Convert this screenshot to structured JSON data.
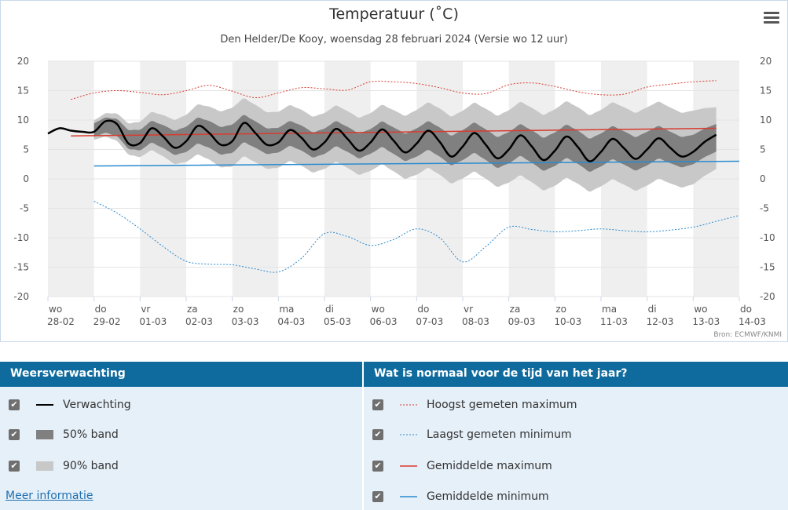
{
  "header": {
    "title": "Temperatuur (˚C)",
    "subtitle": "Den Helder/De Kooy, woensdag 28 februari 2024 (Versie wo 12 uur)",
    "credits": "Bron: ECMWF/KNMI"
  },
  "colors": {
    "forecast": "#000000",
    "band50": "#808080",
    "band90": "#c8c8c8",
    "record_max": "#d83b2f",
    "record_min": "#2a8bd0",
    "normal_max": "#d83b2f",
    "normal_min": "#2a8bd0"
  },
  "chart_data": {
    "type": "line",
    "title": "Temperatuur (˚C)",
    "ylim": [
      -20,
      20
    ],
    "yticks": [
      20,
      15,
      10,
      5,
      0,
      -5,
      -10,
      -15,
      -20
    ],
    "x_range_days": [
      0,
      15
    ],
    "x_labels": [
      {
        "day": "wo",
        "date": "28-02"
      },
      {
        "day": "do",
        "date": "29-02"
      },
      {
        "day": "vr",
        "date": "01-03"
      },
      {
        "day": "za",
        "date": "02-03"
      },
      {
        "day": "zo",
        "date": "03-03"
      },
      {
        "day": "ma",
        "date": "04-03"
      },
      {
        "day": "di",
        "date": "05-03"
      },
      {
        "day": "wo",
        "date": "06-03"
      },
      {
        "day": "do",
        "date": "07-03"
      },
      {
        "day": "vr",
        "date": "08-03"
      },
      {
        "day": "za",
        "date": "09-03"
      },
      {
        "day": "zo",
        "date": "10-03"
      },
      {
        "day": "ma",
        "date": "11-03"
      },
      {
        "day": "di",
        "date": "12-03"
      },
      {
        "day": "wo",
        "date": "13-03"
      },
      {
        "day": "do",
        "date": "14-03"
      }
    ],
    "series": [
      {
        "name": "Verwachting",
        "x": [
          0,
          0.25,
          0.5,
          0.75,
          1,
          1.25,
          1.5,
          1.75,
          2,
          2.25,
          2.5,
          2.75,
          3,
          3.25,
          3.5,
          3.75,
          4,
          4.25,
          4.5,
          4.75,
          5,
          5.25,
          5.5,
          5.75,
          6,
          6.25,
          6.5,
          6.75,
          7,
          7.25,
          7.5,
          7.75,
          8,
          8.25,
          8.5,
          8.75,
          9,
          9.25,
          9.5,
          9.75,
          10,
          10.25,
          10.5,
          10.75,
          11,
          11.25,
          11.5,
          11.75,
          12,
          12.25,
          12.5,
          12.75,
          13,
          13.25,
          13.5,
          13.75,
          14,
          14.25,
          14.5
        ],
        "values": [
          7.7,
          8.6,
          8.2,
          8.0,
          8.0,
          9.8,
          9.3,
          6.0,
          6.1,
          8.6,
          7.2,
          5.3,
          6.4,
          9.0,
          7.8,
          5.8,
          6.4,
          9.5,
          7.8,
          5.8,
          6.2,
          8.3,
          7.0,
          5.0,
          6.2,
          8.5,
          6.8,
          4.8,
          6.2,
          8.4,
          6.5,
          4.5,
          6.0,
          8.2,
          6.3,
          3.8,
          5.5,
          7.8,
          5.8,
          3.5,
          5.0,
          7.4,
          5.5,
          3.2,
          4.8,
          7.2,
          5.4,
          3.0,
          4.6,
          6.8,
          5.2,
          3.4,
          5.0,
          6.9,
          5.3,
          3.8,
          4.6,
          6.3,
          7.5
        ]
      },
      {
        "name": "50% band",
        "x": [
          1.0,
          2,
          3,
          4,
          5,
          6,
          7,
          8,
          9,
          10,
          11,
          12,
          13,
          14,
          14.5
        ],
        "lower": [
          7.5,
          5.5,
          5.0,
          5.0,
          5.0,
          4.5,
          4.5,
          4.0,
          3.5,
          3.0,
          2.5,
          2.5,
          2.5,
          3.0,
          4.0
        ],
        "upper": [
          9.8,
          9.0,
          9.3,
          9.8,
          9.2,
          8.8,
          8.7,
          8.8,
          8.6,
          8.3,
          8.2,
          8.1,
          8.2,
          8.0,
          8.7
        ]
      },
      {
        "name": "90% band",
        "x": [
          1.0,
          2,
          3,
          4,
          5,
          6,
          7,
          8,
          9,
          10,
          11,
          12,
          13,
          14,
          14.5
        ],
        "lower": [
          7.0,
          4.5,
          3.5,
          3.0,
          2.5,
          2.0,
          1.5,
          1.0,
          0.5,
          0.0,
          -0.5,
          -0.5,
          -0.5,
          0.0,
          1.0
        ],
        "upper": [
          10.3,
          10.5,
          11.5,
          13.0,
          12.0,
          11.5,
          11.3,
          12.0,
          12.0,
          12.3,
          12.5,
          12.5,
          12.8,
          12.5,
          11.5
        ]
      },
      {
        "name": "Hoogst gemeten maximum",
        "x": [
          0.5,
          1,
          1.5,
          2,
          2.5,
          3,
          3.5,
          4,
          4.5,
          5,
          5.5,
          6,
          6.5,
          7,
          7.5,
          8,
          8.5,
          9,
          9.5,
          10,
          10.5,
          11,
          11.5,
          12,
          12.5,
          13,
          13.5,
          14,
          14.5
        ],
        "values": [
          13.5,
          14.6,
          15.0,
          14.7,
          14.3,
          15.0,
          15.9,
          14.9,
          13.8,
          14.6,
          15.5,
          15.3,
          15.1,
          16.5,
          16.5,
          16.2,
          15.5,
          14.6,
          14.5,
          16.0,
          16.3,
          15.7,
          14.8,
          14.3,
          14.4,
          15.6,
          16.1,
          16.5,
          16.7
        ]
      },
      {
        "name": "Laagst gemeten minimum",
        "x": [
          1,
          1.5,
          2,
          2.5,
          3,
          3.5,
          4,
          4.5,
          5,
          5.5,
          6,
          6.5,
          7,
          7.5,
          8,
          8.5,
          9,
          9.5,
          10,
          10.5,
          11,
          11.5,
          12,
          12.5,
          13,
          13.5,
          14,
          14.5,
          15
        ],
        "values": [
          -3.8,
          -5.8,
          -8.5,
          -11.5,
          -14.0,
          -14.5,
          -14.6,
          -15.3,
          -15.8,
          -13.5,
          -9.3,
          -9.8,
          -11.3,
          -10.3,
          -8.5,
          -10.0,
          -14.1,
          -11.5,
          -8.2,
          -8.6,
          -9.0,
          -8.8,
          -8.5,
          -8.8,
          -9.0,
          -8.7,
          -8.2,
          -7.2,
          -6.2
        ]
      },
      {
        "name": "Gemiddelde maximum",
        "x": [
          0.5,
          14.5
        ],
        "values": [
          7.3,
          8.6
        ]
      },
      {
        "name": "Gemiddelde minimum",
        "x": [
          1,
          15
        ],
        "values": [
          2.2,
          3.0
        ]
      }
    ]
  },
  "legend_left": {
    "header": "Weersverwachting",
    "items": [
      {
        "label": "Verwachting",
        "checked": "✔"
      },
      {
        "label": "50% band",
        "checked": "✔"
      },
      {
        "label": "90% band",
        "checked": "✔"
      }
    ],
    "link": "Meer informatie"
  },
  "legend_right": {
    "header": "Wat is normaal voor de tijd van het jaar?",
    "items": [
      {
        "label": "Hoogst gemeten maximum",
        "checked": "✔"
      },
      {
        "label": "Laagst gemeten minimum",
        "checked": "✔"
      },
      {
        "label": "Gemiddelde maximum",
        "checked": "✔"
      },
      {
        "label": "Gemiddelde minimum",
        "checked": "✔"
      }
    ]
  }
}
